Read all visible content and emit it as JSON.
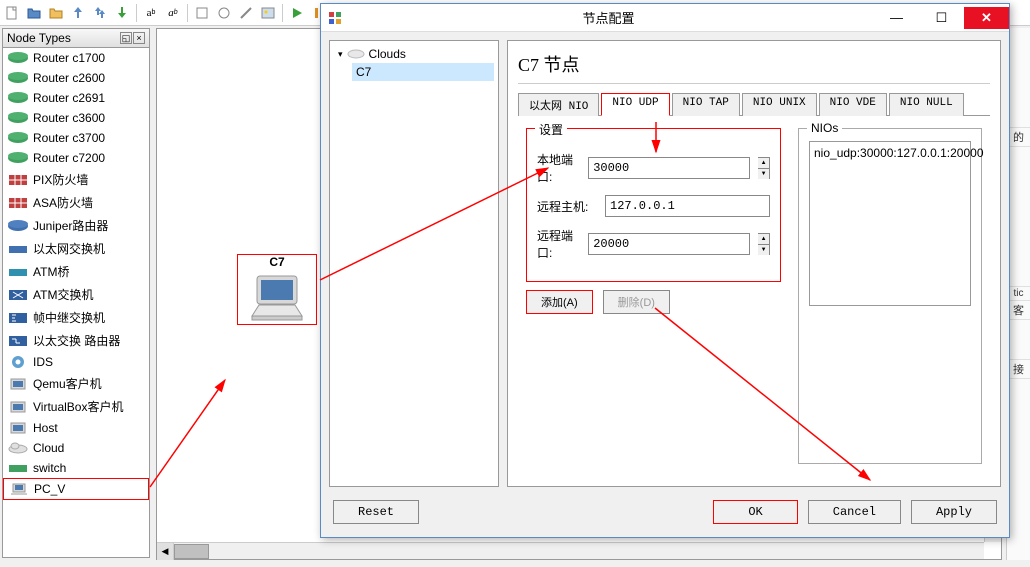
{
  "panel": {
    "title": "Node Types"
  },
  "nodes": [
    {
      "icon": "router",
      "label": "Router c1700"
    },
    {
      "icon": "router",
      "label": "Router c2600"
    },
    {
      "icon": "router",
      "label": "Router c2691"
    },
    {
      "icon": "router",
      "label": "Router c3600"
    },
    {
      "icon": "router",
      "label": "Router c3700"
    },
    {
      "icon": "router",
      "label": "Router c7200"
    },
    {
      "icon": "firewall",
      "label": "PIX防火墙"
    },
    {
      "icon": "firewall",
      "label": "ASA防火墙"
    },
    {
      "icon": "router-blue",
      "label": "Juniper路由器"
    },
    {
      "icon": "switch-blue",
      "label": "以太网交换机"
    },
    {
      "icon": "atm",
      "label": "ATM桥"
    },
    {
      "icon": "atm-x",
      "label": "ATM交换机"
    },
    {
      "icon": "fr",
      "label": "帧中继交换机"
    },
    {
      "icon": "ethsw",
      "label": "以太交换 路由器"
    },
    {
      "icon": "ids",
      "label": "IDS"
    },
    {
      "icon": "qemu",
      "label": "Qemu客户机"
    },
    {
      "icon": "vbox",
      "label": "VirtualBox客户机"
    },
    {
      "icon": "host",
      "label": "Host"
    },
    {
      "icon": "cloud",
      "label": "Cloud"
    },
    {
      "icon": "switch-g",
      "label": "switch"
    },
    {
      "icon": "pc",
      "label": "PC_V"
    }
  ],
  "canvas_node": {
    "label": "C7"
  },
  "dialog": {
    "title": "节点配置",
    "tree": {
      "parent": "Clouds",
      "child": "C7"
    },
    "main_title": "C7 节点",
    "tabs": [
      "以太网 NIO",
      "NIO UDP",
      "NIO TAP",
      "NIO UNIX",
      "NIO VDE",
      "NIO NULL"
    ],
    "active_tab": 1,
    "settings_legend": "设置",
    "nios_legend": "NIOs",
    "local_port_label": "本地端口:",
    "local_port_value": "30000",
    "remote_host_label": "远程主机:",
    "remote_host_value": "127.0.0.1",
    "remote_port_label": "远程端口:",
    "remote_port_value": "20000",
    "add_btn": "添加(A)",
    "del_btn": "删除(D)",
    "nios_item": "nio_udp:30000:127.0.0.1:20000",
    "reset_btn": "Reset",
    "ok_btn": "OK",
    "cancel_btn": "Cancel",
    "apply_btn": "Apply"
  },
  "highlight_color": "#ff0000"
}
